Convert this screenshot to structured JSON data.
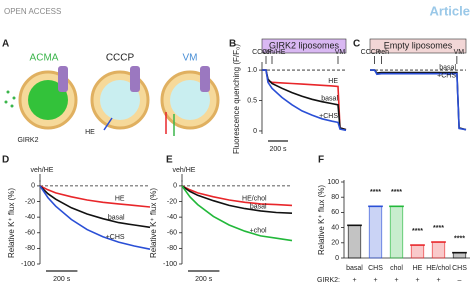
{
  "header": {
    "left": "OPEN ACCESS",
    "right": "Article"
  },
  "panel_a": {
    "panel": "A",
    "acma": "ACMA",
    "cccp": "CCCP",
    "vm": "VM",
    "girk2": "GIRK2",
    "he": "HE"
  },
  "chart_data": [
    {
      "type": "line",
      "panel": "B",
      "title": "GIRK2 liposomes",
      "title_color": "#d9b8f2",
      "ylabel": "Fluorescence quenching (F/F₀)",
      "xlim": [
        0,
        840
      ],
      "ylim": [
        -0.05,
        1.1
      ],
      "yticks": [
        0,
        0.5,
        {
          "value": 1,
          "label": "1.0"
        }
      ],
      "reference": 1,
      "events": [
        {
          "label": "CCCP",
          "x": 40
        },
        {
          "label": "veh/HE",
          "x": 100
        },
        {
          "label": "VM",
          "x": 760
        }
      ],
      "scalebar": {
        "value": 200,
        "label": "200 s"
      },
      "x": [
        0,
        40,
        60,
        100,
        200,
        300,
        400,
        500,
        600,
        700,
        760,
        780,
        840
      ],
      "series": [
        {
          "name": "HE",
          "color": "#e8262a",
          "values": [
            1,
            1,
            0.82,
            0.8,
            0.79,
            0.78,
            0.77,
            0.76,
            0.75,
            0.74,
            0.73,
            0.05,
            0.02
          ]
        },
        {
          "name": "basal",
          "color": "#111111",
          "values": [
            1,
            1,
            0.85,
            0.78,
            0.7,
            0.63,
            0.57,
            0.52,
            0.48,
            0.45,
            0.43,
            0.05,
            0.02
          ]
        },
        {
          "name": "+CHS",
          "color": "#2a4fd6",
          "values": [
            1,
            1,
            0.8,
            0.7,
            0.55,
            0.43,
            0.33,
            0.26,
            0.2,
            0.16,
            0.14,
            0.03,
            0.01
          ]
        }
      ]
    },
    {
      "type": "line",
      "panel": "C",
      "title": "Empty liposomes",
      "title_color": "#f2d6d6",
      "xlim": [
        0,
        840
      ],
      "ylim": [
        -0.05,
        1.1
      ],
      "reference": 1,
      "events": [
        {
          "label": "CCCP",
          "x": 40
        },
        {
          "label": "veh",
          "x": 100
        },
        {
          "label": "VM",
          "x": 760
        }
      ],
      "x": [
        0,
        40,
        60,
        100,
        400,
        700,
        760,
        780,
        840
      ],
      "series": [
        {
          "name": "basal",
          "color": "#111111",
          "values": [
            1,
            1,
            0.95,
            0.96,
            0.96,
            0.96,
            0.96,
            0.05,
            0.02
          ]
        },
        {
          "name": "+CHS",
          "color": "#2a4fd6",
          "values": [
            1,
            1,
            0.93,
            0.94,
            0.94,
            0.94,
            0.94,
            0.04,
            0.02
          ]
        }
      ]
    },
    {
      "type": "line",
      "panel": "D",
      "ylabel": "Relative K⁺ flux (%)",
      "xlim": [
        0,
        700
      ],
      "ylim": [
        -100,
        5
      ],
      "yticks": [
        0,
        -20,
        -40,
        -60,
        -80,
        -100
      ],
      "reference": 0,
      "events": [
        {
          "label": "veh/HE",
          "x": 0
        }
      ],
      "scalebar": {
        "value": 200,
        "label": "200 s"
      },
      "x": [
        0,
        50,
        100,
        200,
        300,
        400,
        500,
        600,
        700
      ],
      "series": [
        {
          "name": "HE",
          "color": "#e8262a",
          "values": [
            0,
            -5,
            -9,
            -14,
            -18,
            -21,
            -23,
            -25,
            -27
          ]
        },
        {
          "name": "basal",
          "color": "#111111",
          "values": [
            0,
            -10,
            -17,
            -28,
            -36,
            -42,
            -47,
            -50,
            -53
          ]
        },
        {
          "name": "+CHS",
          "color": "#2a4fd6",
          "values": [
            0,
            -15,
            -26,
            -43,
            -56,
            -65,
            -72,
            -77,
            -81
          ]
        }
      ]
    },
    {
      "type": "line",
      "panel": "E",
      "ylabel": "Relative K⁺ flux (%)",
      "xlim": [
        0,
        700
      ],
      "ylim": [
        -100,
        5
      ],
      "yticks": [
        0,
        -20,
        -40,
        -60,
        -80,
        -100
      ],
      "reference": 0,
      "events": [
        {
          "label": "veh/HE",
          "x": 0
        }
      ],
      "scalebar": {
        "value": 200,
        "label": "200 s"
      },
      "x": [
        0,
        50,
        100,
        200,
        300,
        400,
        500,
        600,
        700
      ],
      "series": [
        {
          "name": "HE/chol",
          "color": "#e8262a",
          "values": [
            0,
            -5,
            -9,
            -14,
            -18,
            -21,
            -23,
            -24,
            -25
          ]
        },
        {
          "name": "basal",
          "color": "#111111",
          "values": [
            0,
            -7,
            -12,
            -19,
            -25,
            -29,
            -32,
            -34,
            -35
          ]
        },
        {
          "name": "+chol",
          "color": "#22b83a",
          "values": [
            0,
            -14,
            -24,
            -39,
            -50,
            -58,
            -64,
            -67,
            -70
          ]
        }
      ]
    },
    {
      "type": "bar",
      "panel": "F",
      "ylabel": "Relative K⁺ flux (%)",
      "ylim": [
        0,
        100
      ],
      "yticks": [
        0,
        20,
        40,
        60,
        80,
        100
      ],
      "categories": [
        "basal",
        "CHS",
        "chol",
        "HE",
        "HE/chol",
        "CHS"
      ],
      "values": [
        43,
        68,
        68,
        17,
        21,
        7
      ],
      "colors": [
        "#111111",
        "#2a4fd6",
        "#22b83a",
        "#e8262a",
        "#e8262a",
        "#111111"
      ],
      "annotations": [
        null,
        "****",
        "****",
        "****",
        "****",
        "****"
      ],
      "row_label": "GIRK2:",
      "row": [
        "+",
        "+",
        "+",
        "+",
        "+",
        "–"
      ]
    }
  ]
}
